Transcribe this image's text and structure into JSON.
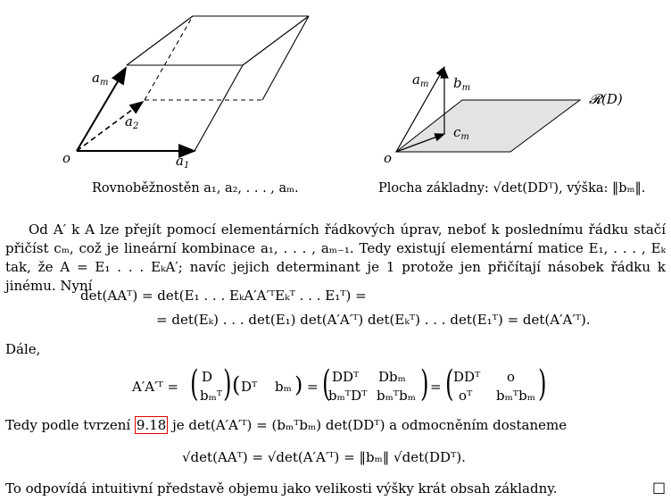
{
  "figure_left": {
    "labels": {
      "am": "a",
      "am_sub": "m",
      "a2": "a",
      "a2_sub": "2",
      "o": "o",
      "a1": "a",
      "a1_sub": "1"
    },
    "caption": "Rovnoběžnostěn a₁, a₂, . . . , aₘ."
  },
  "figure_right": {
    "labels": {
      "am": "a",
      "am_sub": "m",
      "bm": "b",
      "bm_sub": "m",
      "cm": "c",
      "cm_sub": "m",
      "o": "o",
      "rd": "𝓡(D)"
    },
    "caption": "Plocha základny: √det(DDᵀ), výška: ‖bₘ‖."
  },
  "paragraph1": "Od A′ k A lze přejít pomocí elementárních řádkových úprav, neboť k poslednímu řádku stačí přičíst cₘ, což je lineární kombinace a₁, . . . , aₘ₋₁. Tedy existují elementární matice E₁, . . . , Eₖ tak, že A = E₁ . . . EₖA′; navíc jejich determinant je 1 protože jen přičítají násobek řádku k jinému. Nyní",
  "eq1_line1": "det(AAᵀ) = det(E₁ . . . EₖA′A′ᵀEₖᵀ . . . E₁ᵀ) =",
  "eq1_line2": "= det(Eₖ) . . . det(E₁) det(A′A′ᵀ) det(Eₖᵀ) . . . det(E₁ᵀ) = det(A′A′ᵀ).",
  "dale": "Dále,",
  "eq2": {
    "lhs": "A′A′ᵀ =",
    "col1_top": "D",
    "col1_bot": "bₘᵀ",
    "row_a": "Dᵀ",
    "row_b": "bₘ",
    "eq_sign": "=",
    "m2_r1c1": "DDᵀ",
    "m2_r1c2": "Dbₘ",
    "m2_r2c1": "bₘᵀDᵀ",
    "m2_r2c2": "bₘᵀbₘ",
    "m3_r1c1": "DDᵀ",
    "m3_r1c2": "o",
    "m3_r2c1": "oᵀ",
    "m3_r2c2": "bₘᵀbₘ"
  },
  "paragraph2_before": "Tedy podle tvrzení ",
  "paragraph2_ref": "9.18",
  "paragraph2_after": " je det(A′A′ᵀ) = (bₘᵀbₘ) det(DDᵀ) a odmocněním dostaneme",
  "eq3": "√det(AAᵀ) = √det(A′A′ᵀ) = ‖bₘ‖ √det(DDᵀ).",
  "conclusion": "To odpovídá intuitivní představě objemu jako velikosti výšky krát obsah základny.",
  "qed": "□"
}
